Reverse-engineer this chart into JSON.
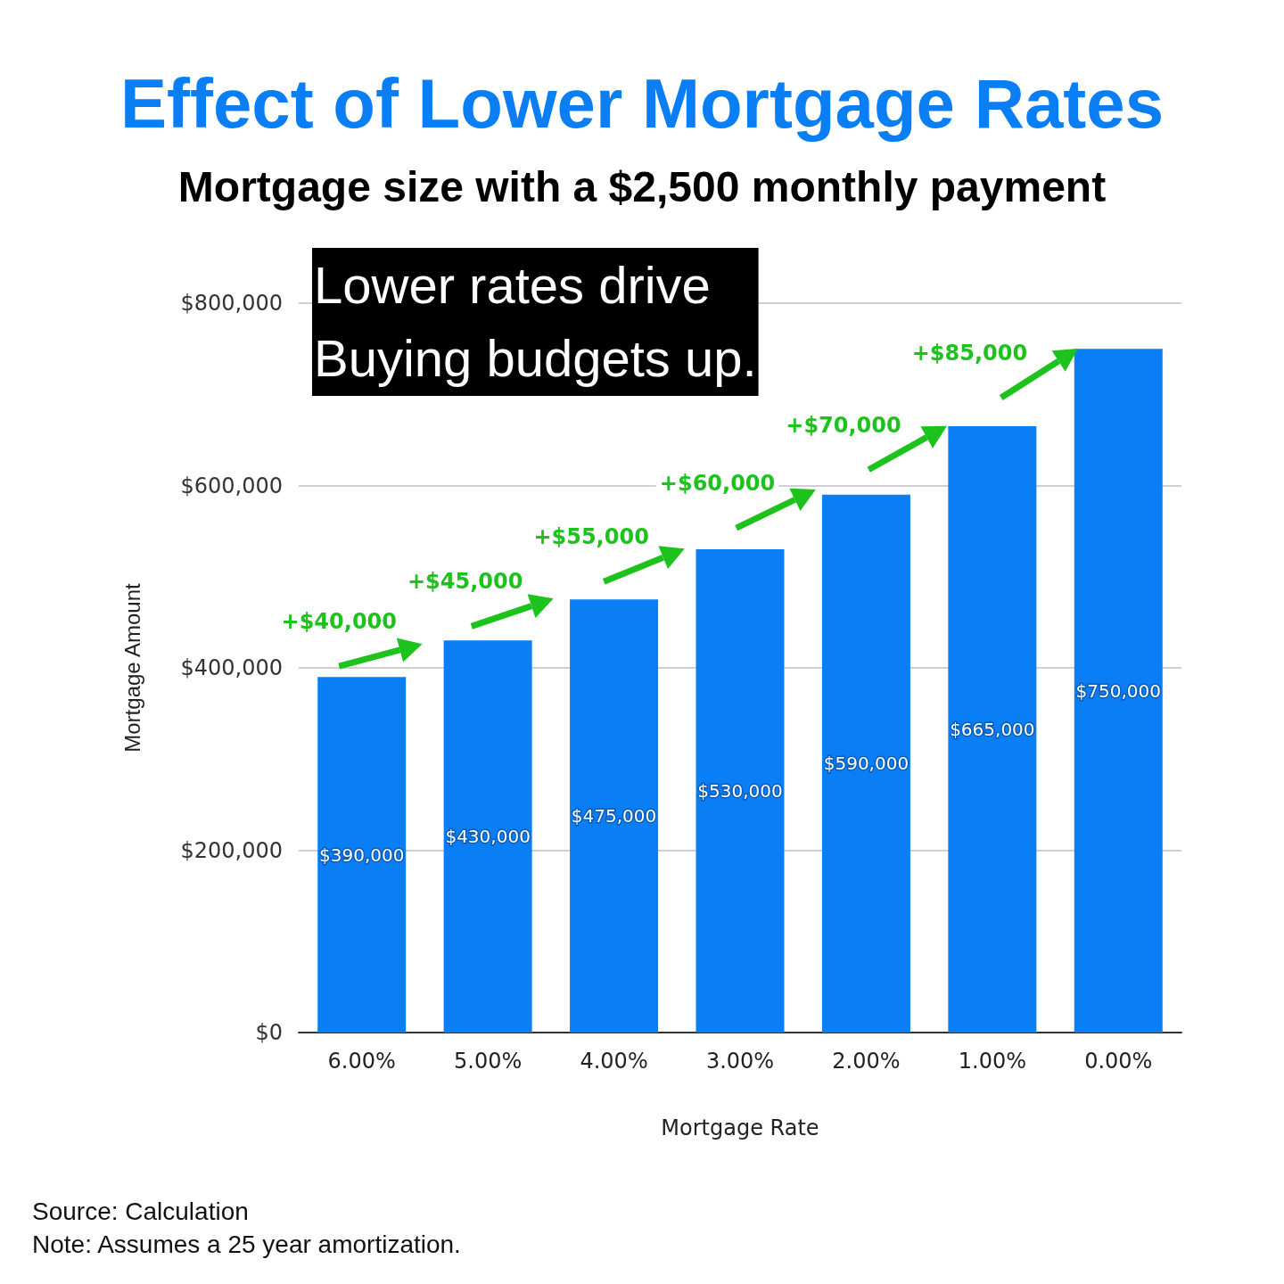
{
  "chart_data": {
    "type": "bar",
    "title": "Effect of Lower Mortgage Rates",
    "subtitle": "Mortgage size with a $2,500 monthly payment",
    "xlabel": "Mortgage Rate",
    "ylabel": "Mortgage Amount",
    "categories": [
      "6.00%",
      "5.00%",
      "4.00%",
      "3.00%",
      "2.00%",
      "1.00%",
      "0.00%"
    ],
    "values": [
      390000,
      430000,
      475000,
      530000,
      590000,
      665000,
      750000
    ],
    "value_labels": [
      "$390,000",
      "$430,000",
      "$475,000",
      "$530,000",
      "$590,000",
      "$665,000",
      "$750,000"
    ],
    "color": "#0a7ff5",
    "ylim": [
      0,
      800000
    ],
    "yticks": [
      {
        "value": 0,
        "label": "$0"
      },
      {
        "value": 200000,
        "label": "$200,000"
      },
      {
        "value": 400000,
        "label": "$400,000"
      },
      {
        "value": 600000,
        "label": "$600,000"
      },
      {
        "value": 800000,
        "label": "$800,000"
      }
    ],
    "grid": "y",
    "annotations": [
      "Lower rates drive\nBuying budgets up.",
      "+$40,000",
      "+$45,000",
      "+$55,000",
      "+$60,000",
      "+$70,000",
      "+$85,000",
      "Source: Calculation",
      "Note: Assumes a 25 year amortization."
    ]
  }
}
